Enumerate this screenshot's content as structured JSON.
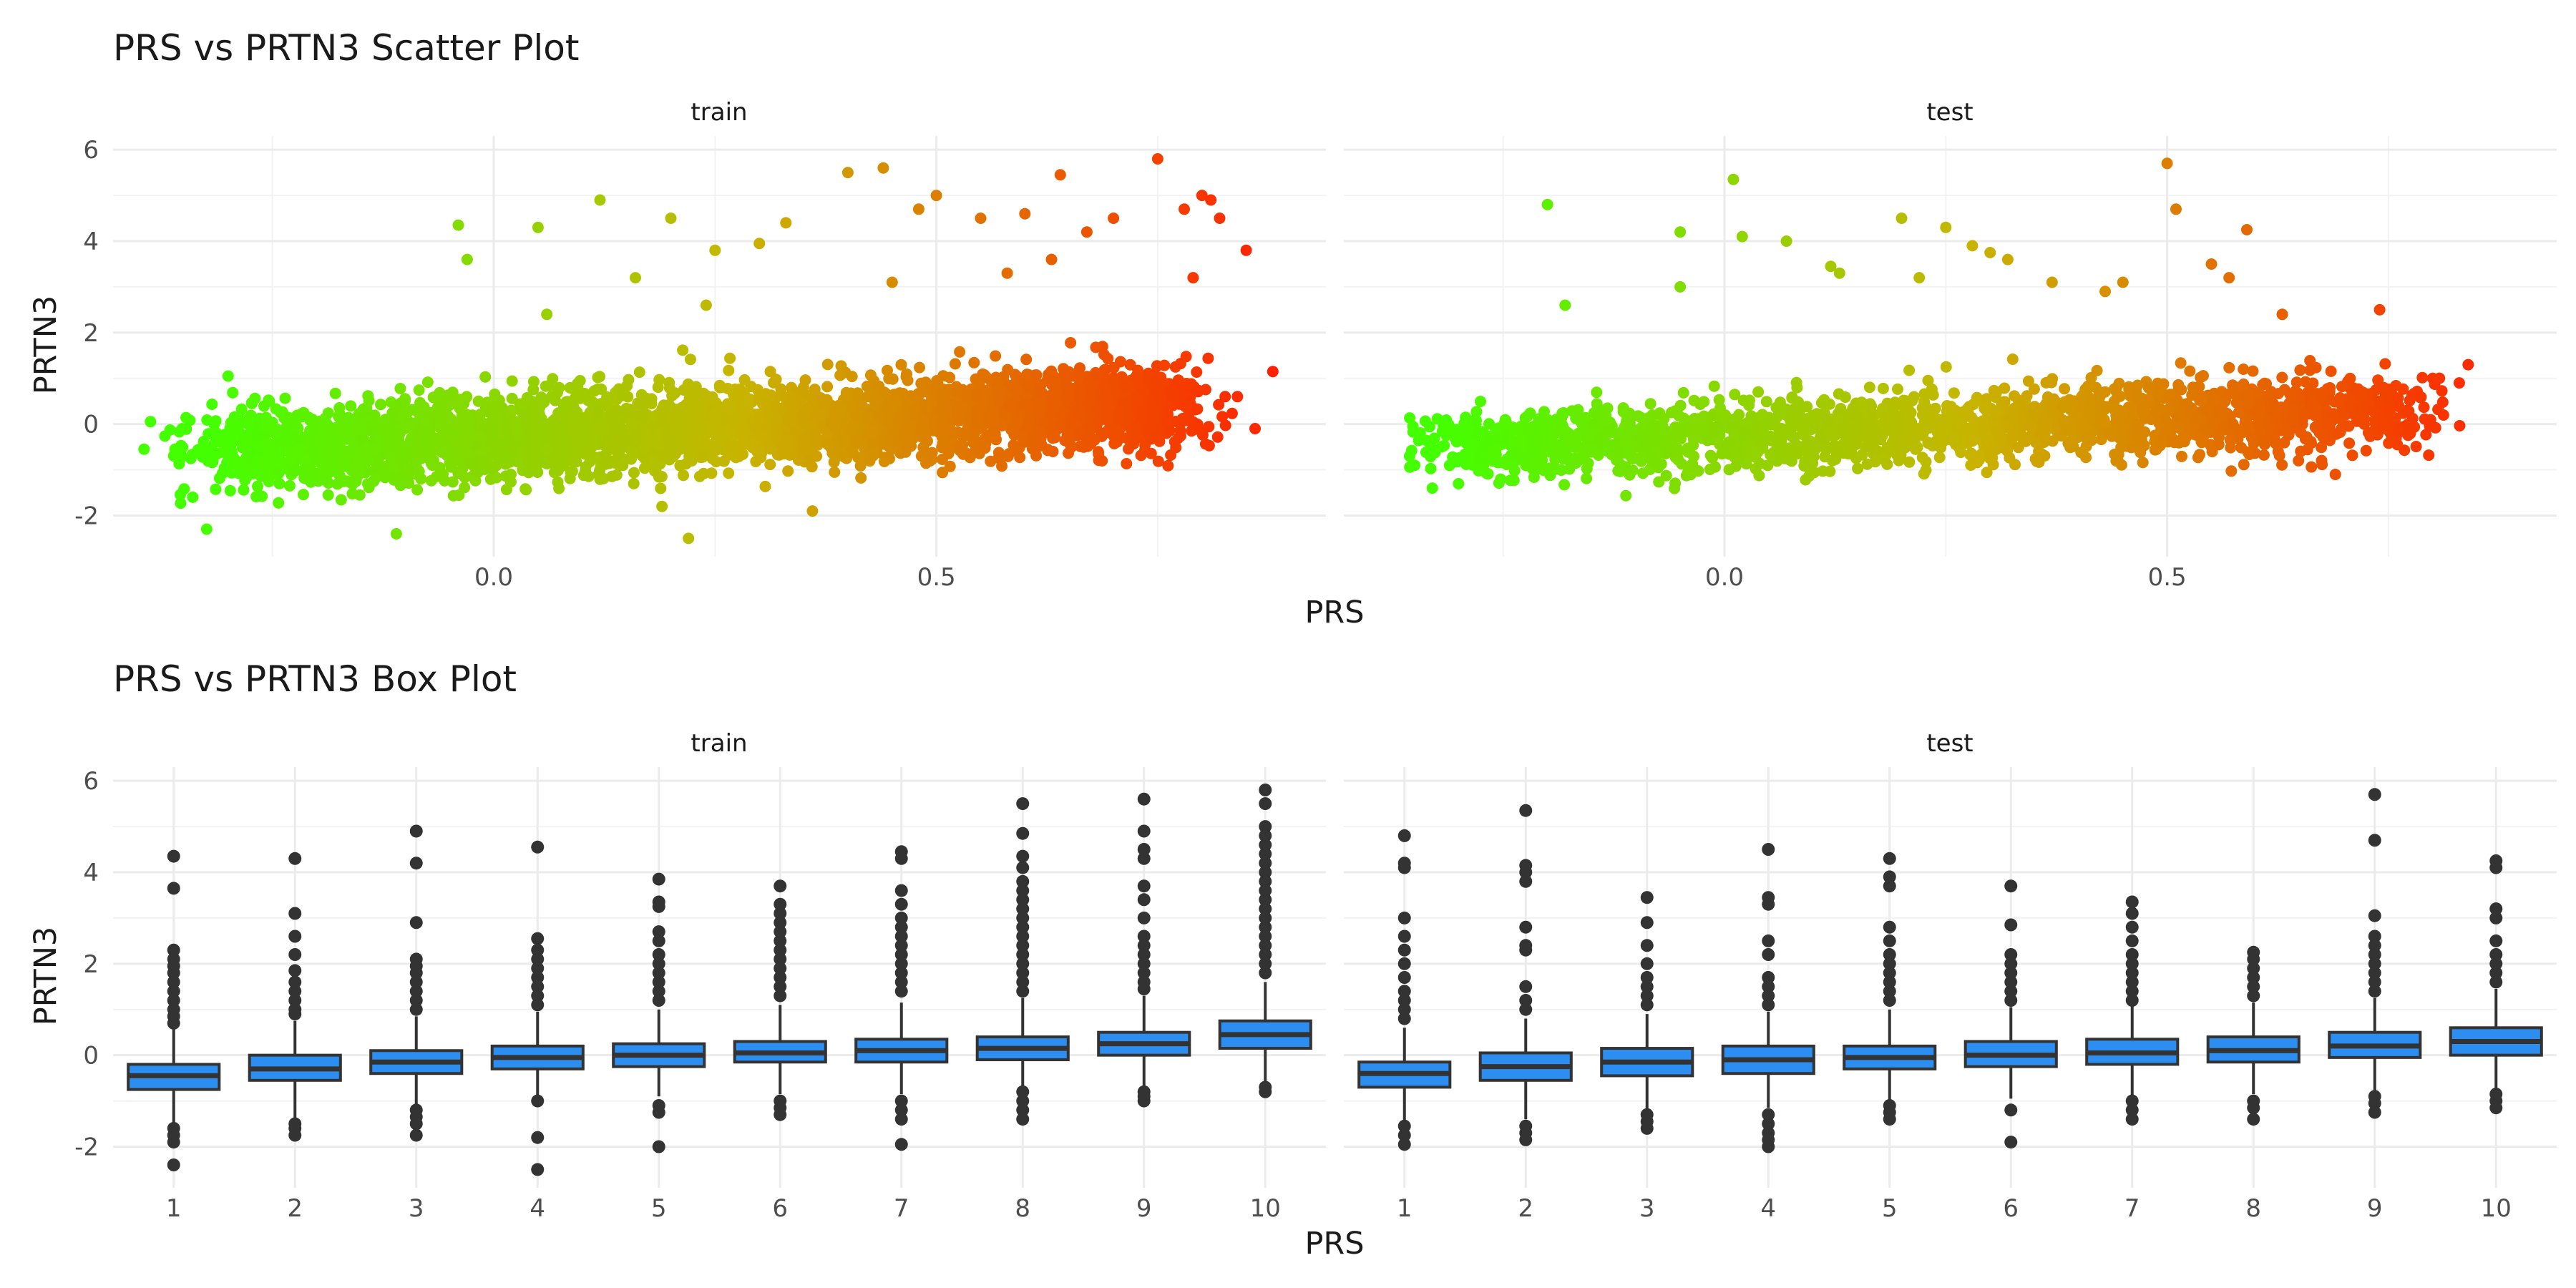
{
  "chart_data": [
    {
      "type": "scatter",
      "title": "PRS vs PRTN3 Scatter Plot",
      "xlabel": "PRS",
      "ylabel": "PRTN3",
      "facets": [
        "train",
        "test"
      ],
      "xlim": [
        -0.43,
        0.94
      ],
      "ylim": [
        -2.9,
        6.3
      ],
      "x_ticks": [
        0.0,
        0.5
      ],
      "x_tick_labels": [
        "0.0",
        "0.5"
      ],
      "y_ticks": [
        -2,
        0,
        2,
        4,
        6
      ],
      "y_tick_labels": [
        "-2",
        "0",
        "2",
        "4",
        "6"
      ],
      "grid": true,
      "color_scale": {
        "low": "#44ff00",
        "mid": "#c8b400",
        "high": "#ff2200"
      },
      "cloud": {
        "train": {
          "x_range": [
            -0.32,
            0.78
          ],
          "n_points": 3600,
          "slope": 1.05,
          "intercept": -0.3,
          "y_spread": 0.45
        },
        "test": {
          "x_range": [
            -0.32,
            0.78
          ],
          "n_points": 2000,
          "slope": 0.9,
          "intercept": -0.25,
          "y_spread": 0.4
        }
      },
      "series": [
        {
          "facet": "train",
          "x": [
            -0.3,
            -0.36,
            -0.34,
            -0.04,
            -0.03,
            0.05,
            0.06,
            0.12,
            0.2,
            0.25,
            0.3,
            0.33,
            0.4,
            0.44,
            0.48,
            0.5,
            0.55,
            0.6,
            0.64,
            0.67,
            0.7,
            0.75,
            0.78,
            0.8,
            0.82,
            0.88,
            0.85,
            0.84,
            0.79,
            0.22,
            0.19,
            -0.11,
            0.36,
            0.16,
            0.24,
            0.58,
            0.63,
            0.45,
            0.81,
            0.86
          ],
          "y": [
            1.05,
            -0.55,
            -1.6,
            4.35,
            3.6,
            4.3,
            2.4,
            4.9,
            4.5,
            3.8,
            3.95,
            4.4,
            5.5,
            5.6,
            4.7,
            5.0,
            4.5,
            4.6,
            5.45,
            4.2,
            4.5,
            5.8,
            4.7,
            5.0,
            4.5,
            1.15,
            3.8,
            0.6,
            3.2,
            -2.5,
            -1.8,
            -2.4,
            -1.9,
            3.2,
            2.6,
            3.3,
            3.6,
            3.1,
            4.9,
            -0.1
          ]
        },
        {
          "facet": "test",
          "x": [
            -0.2,
            -0.35,
            -0.33,
            -0.18,
            -0.05,
            0.01,
            0.07,
            0.13,
            0.2,
            0.22,
            0.25,
            0.3,
            0.32,
            0.37,
            0.45,
            0.5,
            0.51,
            0.57,
            0.59,
            0.63,
            0.74,
            0.8,
            0.84,
            0.83,
            0.76,
            0.69,
            0.02,
            0.12,
            0.28,
            -0.05,
            0.43,
            0.55
          ],
          "y": [
            4.8,
            -0.9,
            -1.4,
            2.6,
            4.2,
            5.35,
            4.0,
            3.3,
            4.5,
            3.2,
            4.3,
            3.75,
            3.6,
            3.1,
            3.1,
            5.7,
            4.7,
            3.2,
            4.25,
            2.4,
            2.5,
            1.0,
            1.3,
            0.9,
            -0.45,
            -1.1,
            4.1,
            3.45,
            3.9,
            3.0,
            2.9,
            3.5
          ]
        }
      ]
    },
    {
      "type": "box",
      "title": "PRS vs PRTN3 Box Plot",
      "xlabel": "PRS",
      "ylabel": "PRTN3",
      "facets": [
        "train",
        "test"
      ],
      "categories": [
        "1",
        "2",
        "3",
        "4",
        "5",
        "6",
        "7",
        "8",
        "9",
        "10"
      ],
      "ylim": [
        -2.9,
        6.3
      ],
      "y_ticks": [
        -2,
        0,
        2,
        4,
        6
      ],
      "y_tick_labels": [
        "-2",
        "0",
        "2",
        "4",
        "6"
      ],
      "grid": true,
      "box_color": "#2b8ef0",
      "series": [
        {
          "name": "train",
          "boxes": [
            {
              "q1": -0.75,
              "median": -0.45,
              "q3": -0.2,
              "whisker_low": -1.5,
              "whisker_high": 0.6,
              "outliers": [
                4.35,
                3.65,
                2.3,
                2.1,
                1.95,
                1.8,
                1.6,
                1.4,
                1.2,
                1.0,
                0.85,
                0.7,
                -1.6,
                -1.75,
                -1.9,
                -2.4
              ]
            },
            {
              "q1": -0.55,
              "median": -0.3,
              "q3": 0.0,
              "whisker_low": -1.4,
              "whisker_high": 0.75,
              "outliers": [
                4.3,
                3.1,
                2.6,
                2.2,
                1.85,
                1.6,
                1.4,
                1.2,
                1.0,
                0.9,
                -1.5,
                -1.6,
                -1.75
              ]
            },
            {
              "q1": -0.4,
              "median": -0.15,
              "q3": 0.1,
              "whisker_low": -1.1,
              "whisker_high": 0.85,
              "outliers": [
                4.9,
                4.2,
                2.9,
                2.1,
                1.95,
                1.8,
                1.6,
                1.4,
                1.2,
                1.0,
                -1.2,
                -1.35,
                -1.5,
                -1.75
              ]
            },
            {
              "q1": -0.3,
              "median": -0.05,
              "q3": 0.2,
              "whisker_low": -0.9,
              "whisker_high": 0.95,
              "outliers": [
                4.55,
                2.55,
                2.3,
                2.1,
                1.9,
                1.7,
                1.5,
                1.3,
                1.1,
                -1.0,
                -1.8,
                -2.5
              ]
            },
            {
              "q1": -0.25,
              "median": 0.0,
              "q3": 0.25,
              "whisker_low": -0.9,
              "whisker_high": 1.0,
              "outliers": [
                3.85,
                3.35,
                3.25,
                2.7,
                2.5,
                2.2,
                2.0,
                1.8,
                1.6,
                1.4,
                1.2,
                -1.1,
                -1.25,
                -2.0
              ]
            },
            {
              "q1": -0.15,
              "median": 0.05,
              "q3": 0.3,
              "whisker_low": -0.85,
              "whisker_high": 1.1,
              "outliers": [
                3.7,
                3.3,
                3.1,
                2.9,
                2.7,
                2.5,
                2.3,
                2.1,
                1.9,
                1.7,
                1.5,
                1.3,
                -1.0,
                -1.15,
                -1.3
              ]
            },
            {
              "q1": -0.15,
              "median": 0.1,
              "q3": 0.35,
              "whisker_low": -0.85,
              "whisker_high": 1.15,
              "outliers": [
                4.45,
                4.3,
                3.6,
                3.3,
                3.0,
                2.8,
                2.6,
                2.4,
                2.2,
                2.0,
                1.8,
                1.6,
                1.4,
                -1.0,
                -1.2,
                -1.4,
                -1.95
              ]
            },
            {
              "q1": -0.1,
              "median": 0.15,
              "q3": 0.4,
              "whisker_low": -0.75,
              "whisker_high": 1.25,
              "outliers": [
                5.5,
                4.85,
                4.35,
                4.1,
                3.8,
                3.6,
                3.4,
                3.2,
                3.0,
                2.8,
                2.6,
                2.4,
                2.2,
                2.0,
                1.8,
                1.6,
                1.4,
                -0.8,
                -1.0,
                -1.2,
                -1.4
              ]
            },
            {
              "q1": -0.0,
              "median": 0.25,
              "q3": 0.5,
              "whisker_low": -0.7,
              "whisker_high": 1.3,
              "outliers": [
                5.6,
                4.9,
                4.5,
                4.3,
                3.7,
                3.4,
                3.0,
                2.6,
                2.4,
                2.2,
                2.0,
                1.8,
                1.6,
                1.45,
                -0.8,
                -0.9,
                -1.0
              ]
            },
            {
              "q1": 0.15,
              "median": 0.45,
              "q3": 0.75,
              "whisker_low": -0.6,
              "whisker_high": 1.6,
              "outliers": [
                5.8,
                5.5,
                5.0,
                4.8,
                4.6,
                4.4,
                4.2,
                4.0,
                3.8,
                3.6,
                3.4,
                3.2,
                3.0,
                2.8,
                2.6,
                2.4,
                2.2,
                2.0,
                1.8,
                -0.7,
                -0.8
              ]
            }
          ]
        },
        {
          "name": "test",
          "boxes": [
            {
              "q1": -0.7,
              "median": -0.4,
              "q3": -0.15,
              "whisker_low": -1.45,
              "whisker_high": 0.6,
              "outliers": [
                4.8,
                4.2,
                4.1,
                3.0,
                2.6,
                2.3,
                2.0,
                1.7,
                1.4,
                1.2,
                1.0,
                0.8,
                -1.55,
                -1.75,
                -1.95
              ]
            },
            {
              "q1": -0.55,
              "median": -0.25,
              "q3": 0.05,
              "whisker_low": -1.4,
              "whisker_high": 0.8,
              "outliers": [
                5.35,
                4.15,
                4.0,
                3.8,
                2.8,
                2.4,
                2.3,
                1.5,
                1.2,
                1.0,
                -1.55,
                -1.7,
                -1.85
              ]
            },
            {
              "q1": -0.45,
              "median": -0.15,
              "q3": 0.15,
              "whisker_low": -1.2,
              "whisker_high": 0.9,
              "outliers": [
                3.45,
                2.9,
                2.4,
                2.0,
                1.7,
                1.5,
                1.3,
                1.1,
                -1.3,
                -1.45,
                -1.6
              ]
            },
            {
              "q1": -0.4,
              "median": -0.1,
              "q3": 0.2,
              "whisker_low": -1.15,
              "whisker_high": 0.95,
              "outliers": [
                4.5,
                3.45,
                3.3,
                2.5,
                2.2,
                1.7,
                1.5,
                1.3,
                1.1,
                -1.3,
                -1.5,
                -1.7,
                -1.85,
                -2.0
              ]
            },
            {
              "q1": -0.3,
              "median": -0.05,
              "q3": 0.2,
              "whisker_low": -1.05,
              "whisker_high": 1.0,
              "outliers": [
                4.3,
                3.9,
                3.7,
                2.8,
                2.5,
                2.2,
                2.0,
                1.8,
                1.6,
                1.4,
                1.2,
                -1.1,
                -1.25,
                -1.4
              ]
            },
            {
              "q1": -0.25,
              "median": 0.0,
              "q3": 0.3,
              "whisker_low": -0.95,
              "whisker_high": 1.05,
              "outliers": [
                3.7,
                2.85,
                2.2,
                2.0,
                1.8,
                1.6,
                1.4,
                1.2,
                -1.2,
                -1.9
              ]
            },
            {
              "q1": -0.2,
              "median": 0.05,
              "q3": 0.35,
              "whisker_low": -0.9,
              "whisker_high": 1.1,
              "outliers": [
                3.35,
                3.1,
                2.8,
                2.5,
                2.2,
                2.0,
                1.8,
                1.6,
                1.4,
                1.2,
                -1.0,
                -1.2,
                -1.4
              ]
            },
            {
              "q1": -0.15,
              "median": 0.1,
              "q3": 0.4,
              "whisker_low": -0.85,
              "whisker_high": 1.15,
              "outliers": [
                2.25,
                2.1,
                1.9,
                1.7,
                1.5,
                1.3,
                -1.0,
                -1.15,
                -1.4
              ]
            },
            {
              "q1": -0.05,
              "median": 0.2,
              "q3": 0.5,
              "whisker_low": -0.8,
              "whisker_high": 1.25,
              "outliers": [
                5.7,
                4.7,
                3.05,
                2.6,
                2.4,
                2.2,
                2.0,
                1.8,
                1.6,
                1.4,
                -0.9,
                -1.05,
                -1.25
              ]
            },
            {
              "q1": 0.0,
              "median": 0.3,
              "q3": 0.6,
              "whisker_low": -0.75,
              "whisker_high": 1.45,
              "outliers": [
                4.25,
                4.1,
                3.2,
                3.0,
                2.5,
                2.2,
                2.0,
                1.8,
                1.6,
                -0.85,
                -1.0,
                -1.15
              ]
            }
          ]
        }
      ]
    }
  ]
}
